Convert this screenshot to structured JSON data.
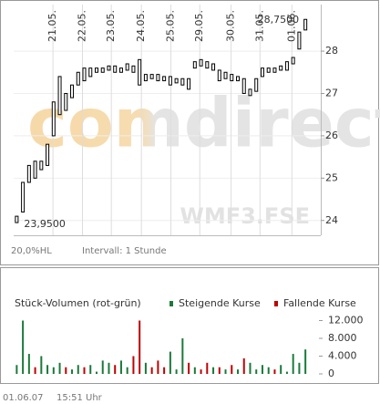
{
  "chart_data": [
    {
      "type": "ohlc",
      "color": "#000000",
      "x": [
        0,
        1,
        2,
        3,
        4,
        5,
        6,
        7,
        8,
        9,
        10,
        11,
        12,
        13,
        14,
        15,
        16,
        17,
        18,
        19,
        20,
        21,
        22,
        23,
        24,
        25,
        26,
        27,
        28,
        29,
        30,
        31,
        32,
        33,
        34,
        35,
        36,
        37,
        38,
        39,
        40,
        41,
        42,
        43,
        44,
        45,
        46,
        47
      ],
      "low": [
        23.95,
        24.2,
        24.9,
        25.0,
        25.2,
        25.3,
        26.0,
        26.5,
        26.6,
        26.9,
        27.2,
        27.3,
        27.4,
        27.5,
        27.5,
        27.55,
        27.5,
        27.5,
        27.55,
        27.5,
        27.2,
        27.3,
        27.35,
        27.3,
        27.3,
        27.2,
        27.25,
        27.2,
        27.1,
        27.6,
        27.65,
        27.6,
        27.55,
        27.3,
        27.35,
        27.3,
        27.3,
        27.0,
        26.95,
        27.05,
        27.4,
        27.5,
        27.5,
        27.55,
        27.55,
        27.7,
        28.05,
        28.5
      ],
      "high": [
        24.1,
        24.9,
        25.3,
        25.4,
        25.4,
        25.8,
        26.8,
        27.4,
        27.0,
        27.2,
        27.5,
        27.6,
        27.6,
        27.6,
        27.6,
        27.65,
        27.65,
        27.6,
        27.7,
        27.65,
        27.8,
        27.45,
        27.45,
        27.45,
        27.4,
        27.4,
        27.35,
        27.35,
        27.35,
        27.75,
        27.8,
        27.75,
        27.7,
        27.55,
        27.5,
        27.45,
        27.4,
        27.35,
        27.1,
        27.35,
        27.6,
        27.6,
        27.6,
        27.65,
        27.75,
        27.85,
        28.45,
        28.75
      ],
      "xlim": [
        -0.5,
        49.5
      ],
      "xticks": [
        {
          "value": 5.9,
          "label": "21.05."
        },
        {
          "value": 10.7,
          "label": "22.05."
        },
        {
          "value": 15.4,
          "label": "23.05."
        },
        {
          "value": 20.3,
          "label": "24.05."
        },
        {
          "value": 25.1,
          "label": "25.05."
        },
        {
          "value": 29.8,
          "label": "29.05."
        },
        {
          "value": 34.9,
          "label": "30.05."
        },
        {
          "value": 39.6,
          "label": "31.05."
        },
        {
          "value": 44.8,
          "label": "01.06."
        }
      ],
      "ylim": [
        23.65,
        29.1
      ],
      "yticks": [
        24,
        25,
        26,
        27,
        28
      ],
      "grid": true,
      "high_label": "28,7500",
      "low_label": "23,9500",
      "watermark": "comdirect",
      "symbol": "WMF3.FSE",
      "scale_note": "20,0%HL",
      "interval": "Intervall: 1 Stunde"
    },
    {
      "type": "bar",
      "title": "Stück-Volumen (rot-grün)",
      "x": [
        0,
        1,
        2,
        3,
        4,
        5,
        6,
        7,
        8,
        9,
        10,
        11,
        12,
        13,
        14,
        15,
        16,
        17,
        18,
        19,
        20,
        21,
        22,
        23,
        24,
        25,
        26,
        27,
        28,
        29,
        30,
        31,
        32,
        33,
        34,
        35,
        36,
        37,
        38,
        39,
        40,
        41,
        42,
        43,
        44,
        45,
        46,
        47
      ],
      "series": [
        {
          "name": "Steigende Kurse",
          "color": "#1a7a3a",
          "values": [
            2000,
            12000,
            4500,
            null,
            4000,
            2000,
            1500,
            2500,
            null,
            1000,
            2000,
            null,
            2000,
            500,
            3000,
            2500,
            null,
            3000,
            1500,
            null,
            null,
            2500,
            null,
            null,
            null,
            5000,
            1000,
            8000,
            null,
            1500,
            null,
            null,
            1500,
            null,
            1000,
            null,
            1000,
            null,
            2500,
            1000,
            2000,
            1500,
            null,
            2000,
            500,
            4500,
            2500,
            5500
          ]
        },
        {
          "name": "Fallende Kurse",
          "color": "#c00000",
          "values": [
            null,
            null,
            null,
            1500,
            null,
            null,
            null,
            null,
            1500,
            null,
            null,
            1500,
            null,
            null,
            null,
            null,
            2000,
            null,
            null,
            4000,
            12000,
            null,
            1500,
            3000,
            1500,
            null,
            null,
            null,
            2500,
            null,
            1000,
            2500,
            null,
            1500,
            null,
            2000,
            null,
            3500,
            null,
            null,
            null,
            null,
            1000,
            null,
            null,
            null,
            null,
            null
          ]
        }
      ],
      "xlim": [
        -0.5,
        49.5
      ],
      "ylim": [
        0,
        12000
      ],
      "yticks": [
        {
          "value": 12000,
          "label": "12.000"
        },
        {
          "value": 8000,
          "label": "8.000"
        },
        {
          "value": 4000,
          "label": "4.000"
        },
        0
      ]
    }
  ],
  "footer": {
    "date": "01.06.07",
    "time": "15:51 Uhr"
  }
}
